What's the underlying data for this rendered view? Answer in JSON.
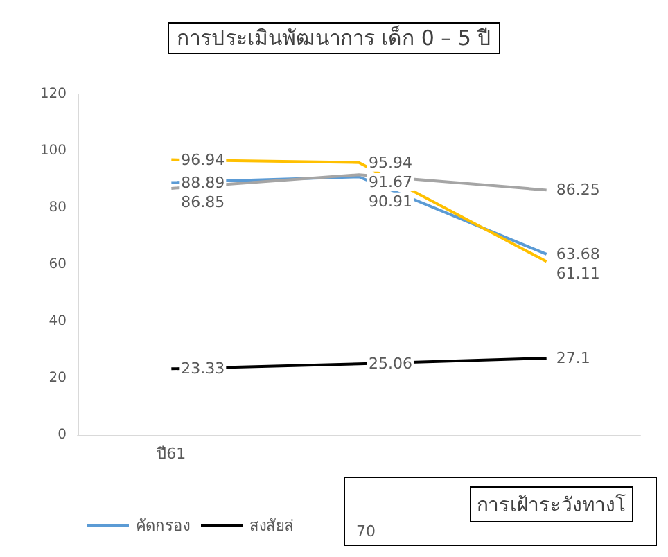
{
  "chart_data": [
    {
      "type": "line",
      "title": "การประเมินพัฒนาการ เด็ก 0 – 5 ปี",
      "categories": [
        "ปี61",
        null,
        null
      ],
      "series": [
        {
          "name": "คัดกรอง",
          "color": "#5b9bd5",
          "values": [
            88.89,
            90.91,
            63.68
          ]
        },
        {
          "name": "สงสัยล่",
          "color": "#000000",
          "values": [
            23.33,
            25.06,
            27.1
          ]
        },
        {
          "color": "#a5a5a5",
          "values": [
            86.85,
            91.67,
            86.25
          ]
        },
        {
          "color": "#ffc000",
          "values": [
            96.94,
            95.94,
            61.11
          ]
        }
      ],
      "ylim": [
        0,
        120
      ],
      "yticks": [
        0,
        20,
        40,
        60,
        80,
        100,
        120
      ],
      "grid": false,
      "legend": "bottom left",
      "marker": "none",
      "data_labels": true
    },
    {
      "type": "other",
      "title": "การเฝ้าระวังทางโ",
      "annotations": [
        "70"
      ]
    }
  ]
}
